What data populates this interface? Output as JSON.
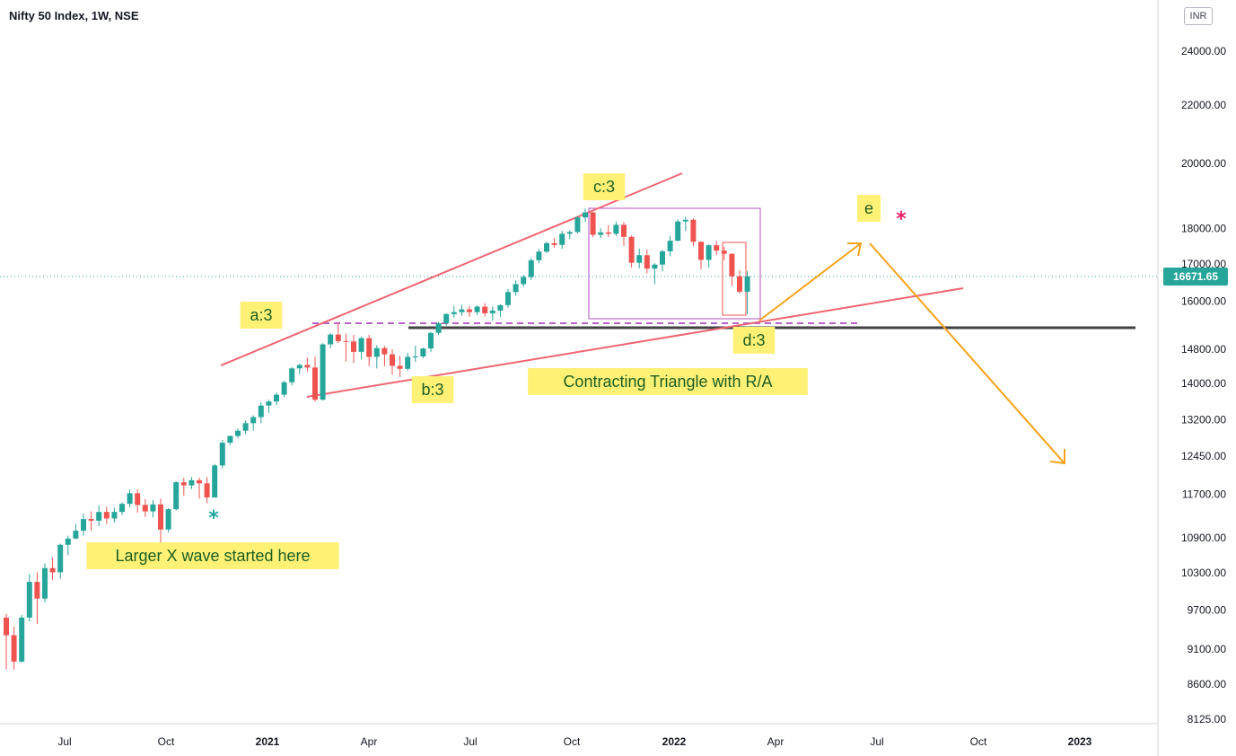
{
  "header": {
    "title": "Nifty 50 Index, 1W, NSE",
    "currency": "INR"
  },
  "current_price_label": "16671.65",
  "colors": {
    "up": "#26a69a",
    "down": "#ef5350",
    "trend": "#f06472",
    "projection": "#f7a21b",
    "label_bg": "#fff176",
    "label_text": "#1b5e20"
  },
  "annotations": {
    "a": "a:3",
    "b": "b:3",
    "c": "c:3",
    "d": "d:3",
    "e": "e",
    "triangle": "Contracting Triangle with R/A",
    "xwave": "Larger X wave started here"
  },
  "chart_data": {
    "type": "candlestick",
    "title": "Nifty 50 Index, 1W, NSE",
    "scale": "log",
    "ylim": [
      8000,
      26000
    ],
    "y_ticks": [
      24000,
      22000,
      20000,
      18000,
      17000,
      16000,
      14800,
      14000,
      13200,
      12450,
      11700,
      10900,
      10300,
      9700,
      9100,
      8600,
      8125
    ],
    "y_tick_labels": [
      "24000.00",
      "22000.00",
      "20000.00",
      "18000.00",
      "17000.00",
      "16000.00",
      "14800.00",
      "14000.00",
      "13200.00",
      "12450.00",
      "11700.00",
      "10900.00",
      "10300.00",
      "9700.00",
      "9100.00",
      "8600.00",
      "8125.00"
    ],
    "x_labels": [
      "Jul",
      "Oct",
      "2021",
      "Apr",
      "Jul",
      "Oct",
      "2022",
      "Apr",
      "Jul",
      "Oct",
      "2023"
    ],
    "bold_x_labels": [
      "2021",
      "2022",
      "2023"
    ],
    "last_price": 16671.65,
    "candles": [
      [
        9580,
        9310,
        9640,
        8810
      ],
      [
        9310,
        8920,
        9440,
        8806
      ],
      [
        8920,
        9580,
        9620,
        8910
      ],
      [
        9580,
        10150,
        10280,
        9520
      ],
      [
        10150,
        9880,
        10310,
        9480
      ],
      [
        9880,
        10380,
        10460,
        9820
      ],
      [
        10380,
        10310,
        10560,
        10180
      ],
      [
        10310,
        10780,
        10800,
        10200
      ],
      [
        10780,
        10890,
        10940,
        10600
      ],
      [
        10890,
        11030,
        11150,
        10880
      ],
      [
        11030,
        11240,
        11340,
        10940
      ],
      [
        11240,
        11210,
        11380,
        11030
      ],
      [
        11210,
        11370,
        11490,
        11110
      ],
      [
        11370,
        11250,
        11470,
        11150
      ],
      [
        11250,
        11370,
        11450,
        11180
      ],
      [
        11370,
        11520,
        11550,
        11310
      ],
      [
        11520,
        11720,
        11790,
        11460
      ],
      [
        11720,
        11500,
        11800,
        11360
      ],
      [
        11500,
        11380,
        11610,
        11280
      ],
      [
        11380,
        11510,
        11590,
        11270
      ],
      [
        11510,
        11050,
        11620,
        10790
      ],
      [
        11050,
        11420,
        11440,
        11000
      ],
      [
        11420,
        11930,
        11950,
        11400
      ],
      [
        11930,
        11870,
        12020,
        11670
      ],
      [
        11870,
        11970,
        12030,
        11800
      ],
      [
        11970,
        11910,
        12020,
        11620
      ],
      [
        11910,
        11640,
        12030,
        11530
      ],
      [
        11640,
        12260,
        12290,
        11640
      ],
      [
        12260,
        12720,
        12780,
        12200
      ],
      [
        12720,
        12860,
        12870,
        12670
      ],
      [
        12860,
        12970,
        13020,
        12810
      ],
      [
        12970,
        13130,
        13190,
        12900
      ],
      [
        13130,
        13260,
        13300,
        12970
      ],
      [
        13260,
        13510,
        13580,
        13130
      ],
      [
        13510,
        13600,
        13640,
        13350
      ],
      [
        13600,
        13750,
        13800,
        13520
      ],
      [
        13750,
        14030,
        14070,
        13700
      ],
      [
        14030,
        14350,
        14380,
        13960
      ],
      [
        14350,
        14430,
        14460,
        14220
      ],
      [
        14430,
        14370,
        14600,
        14280
      ],
      [
        14370,
        13640,
        14620,
        13600
      ],
      [
        13640,
        14920,
        14950,
        13620
      ],
      [
        14920,
        15160,
        15200,
        14830
      ],
      [
        15160,
        15000,
        15430,
        14950
      ],
      [
        15000,
        14990,
        15180,
        14510
      ],
      [
        14990,
        14740,
        15150,
        14470
      ],
      [
        14740,
        15070,
        15110,
        14560
      ],
      [
        15070,
        14620,
        15150,
        14400
      ],
      [
        14620,
        14830,
        14900,
        14350
      ],
      [
        14830,
        14680,
        14880,
        14400
      ],
      [
        14680,
        14410,
        14800,
        14200
      ],
      [
        14410,
        14340,
        14650,
        14150
      ],
      [
        14340,
        14620,
        14720,
        14290
      ],
      [
        14620,
        14630,
        14890,
        14500
      ],
      [
        14630,
        14820,
        14840,
        14590
      ],
      [
        14820,
        15200,
        15220,
        14740
      ],
      [
        15200,
        15440,
        15470,
        15150
      ],
      [
        15440,
        15670,
        15690,
        15380
      ],
      [
        15670,
        15720,
        15880,
        15580
      ],
      [
        15720,
        15790,
        15910,
        15630
      ],
      [
        15790,
        15720,
        15880,
        15600
      ],
      [
        15720,
        15860,
        15900,
        15650
      ],
      [
        15860,
        15690,
        15950,
        15610
      ],
      [
        15690,
        15760,
        15870,
        15510
      ],
      [
        15760,
        15900,
        15920,
        15600
      ],
      [
        15900,
        16240,
        16320,
        15830
      ],
      [
        16240,
        16450,
        16550,
        16150
      ],
      [
        16450,
        16640,
        16700,
        16380
      ],
      [
        16640,
        17100,
        17160,
        16560
      ],
      [
        17100,
        17340,
        17410,
        17020
      ],
      [
        17340,
        17580,
        17620,
        17300
      ],
      [
        17580,
        17530,
        17730,
        17450
      ],
      [
        17530,
        17850,
        17940,
        17420
      ],
      [
        17850,
        17900,
        17950,
        17700
      ],
      [
        17900,
        18330,
        18360,
        17860
      ],
      [
        18330,
        18480,
        18600,
        18200
      ],
      [
        18480,
        17820,
        18500,
        17750
      ],
      [
        17820,
        17890,
        18010,
        17730
      ],
      [
        17890,
        17850,
        18100,
        17760
      ],
      [
        17850,
        18110,
        18210,
        17790
      ],
      [
        18110,
        17760,
        18190,
        17500
      ],
      [
        17760,
        17030,
        17800,
        16900
      ],
      [
        17030,
        17240,
        17430,
        16880
      ],
      [
        17240,
        16870,
        17400,
        16740
      ],
      [
        16870,
        16980,
        17020,
        16450
      ],
      [
        16980,
        17350,
        17390,
        16790
      ],
      [
        17350,
        17650,
        17790,
        17210
      ],
      [
        17650,
        18210,
        18270,
        17630
      ],
      [
        18210,
        18260,
        18350,
        17930
      ],
      [
        18260,
        17620,
        18300,
        17500
      ],
      [
        17620,
        17110,
        17620,
        16850
      ],
      [
        17110,
        17520,
        17550,
        16900
      ],
      [
        17520,
        17370,
        17640,
        17250
      ],
      [
        17370,
        17280,
        17480,
        17100
      ],
      [
        17280,
        16660,
        17290,
        16400
      ],
      [
        16660,
        16250,
        16830,
        16200
      ],
      [
        16250,
        16660,
        16800,
        15670
      ]
    ],
    "trendlines": [
      {
        "role": "upper-channel",
        "from": [
          "2021-02",
          "14400"
        ],
        "to": [
          "2022-01",
          "19700"
        ]
      },
      {
        "role": "lower-channel",
        "from": [
          "2021-02",
          "13700"
        ],
        "to": [
          "2022-10",
          "16200"
        ]
      },
      {
        "role": "support",
        "value": 15300
      }
    ]
  }
}
